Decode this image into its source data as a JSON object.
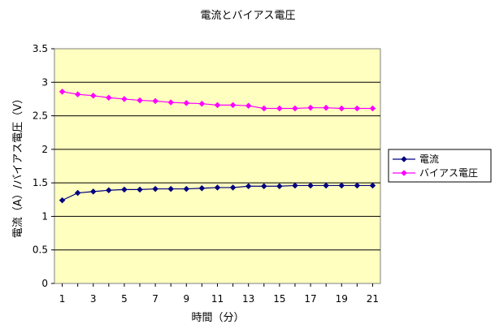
{
  "chart_data": {
    "type": "line",
    "title": "電流とバイアス電圧",
    "xlabel": "時間（分）",
    "ylabel": "電流（A）/バイアス電圧（V）",
    "x": [
      1,
      2,
      3,
      4,
      5,
      6,
      7,
      8,
      9,
      10,
      11,
      12,
      13,
      14,
      15,
      16,
      17,
      18,
      19,
      20,
      21
    ],
    "x_ticks": [
      "1",
      "3",
      "5",
      "7",
      "9",
      "11",
      "13",
      "15",
      "17",
      "19",
      "21"
    ],
    "y_ticks": [
      "0",
      "0.5",
      "1",
      "1.5",
      "2",
      "2.5",
      "3",
      "3.5"
    ],
    "ylim": [
      0,
      3.5
    ],
    "grid": true,
    "legend_position": "right",
    "plot_background": "#FFFFC0",
    "series": [
      {
        "name": "電流",
        "color": "#00007F",
        "marker": "diamond",
        "values": [
          1.24,
          1.35,
          1.37,
          1.39,
          1.4,
          1.4,
          1.41,
          1.41,
          1.41,
          1.42,
          1.43,
          1.43,
          1.45,
          1.45,
          1.45,
          1.46,
          1.46,
          1.46,
          1.46,
          1.46,
          1.46
        ]
      },
      {
        "name": "バイアス電圧",
        "color": "#FF00FF",
        "marker": "diamond",
        "values": [
          2.86,
          2.82,
          2.8,
          2.77,
          2.75,
          2.73,
          2.72,
          2.7,
          2.69,
          2.68,
          2.66,
          2.66,
          2.65,
          2.61,
          2.61,
          2.61,
          2.62,
          2.62,
          2.61,
          2.61,
          2.61
        ]
      }
    ]
  }
}
